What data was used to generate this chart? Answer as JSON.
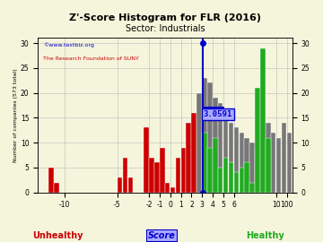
{
  "title": "Z'-Score Histogram for FLR (2016)",
  "subtitle": "Sector: Industrials",
  "xlabel_main": "Score",
  "xlabel_unhealthy": "Unhealthy",
  "xlabel_healthy": "Healthy",
  "ylabel": "Number of companies (573 total)",
  "watermark1": "©www.textbiz.org",
  "watermark2": "The Research Foundation of SUNY",
  "flr_score": 3.0591,
  "flr_label": "3.0591",
  "red_bins": [
    [
      -11.5,
      5
    ],
    [
      -11.0,
      2
    ],
    [
      -5.0,
      3
    ],
    [
      -4.5,
      7
    ],
    [
      -4.0,
      3
    ],
    [
      -2.5,
      13
    ],
    [
      -2.0,
      7
    ],
    [
      -1.5,
      6
    ],
    [
      -1.0,
      9
    ],
    [
      -0.5,
      2
    ],
    [
      0.0,
      1
    ],
    [
      0.5,
      7
    ],
    [
      1.0,
      9
    ],
    [
      1.5,
      14
    ],
    [
      2.0,
      16
    ]
  ],
  "gray_bins": [
    [
      2.5,
      20
    ],
    [
      3.0,
      23
    ],
    [
      3.5,
      22
    ],
    [
      4.0,
      19
    ],
    [
      4.5,
      18
    ],
    [
      5.0,
      16
    ],
    [
      5.5,
      14
    ],
    [
      6.0,
      13
    ],
    [
      6.5,
      12
    ],
    [
      7.0,
      11
    ],
    [
      7.5,
      10
    ],
    [
      8.0,
      9
    ],
    [
      8.5,
      13
    ],
    [
      9.0,
      14
    ],
    [
      9.5,
      12
    ],
    [
      10.0,
      11
    ],
    [
      10.5,
      14
    ],
    [
      11.0,
      12
    ]
  ],
  "green_bins": [
    [
      3.0,
      12
    ],
    [
      3.5,
      9
    ],
    [
      4.0,
      11
    ],
    [
      4.5,
      5
    ],
    [
      5.0,
      7
    ],
    [
      5.5,
      6
    ],
    [
      6.0,
      4
    ],
    [
      6.5,
      5
    ],
    [
      7.0,
      6
    ],
    [
      7.5,
      2
    ],
    [
      8.0,
      21
    ],
    [
      8.5,
      29
    ],
    [
      9.0,
      11
    ]
  ],
  "xlim": [
    -12.5,
    11.5
  ],
  "ylim": [
    0,
    30
  ],
  "xticks": [
    -10,
    -5,
    -2,
    -1,
    0,
    1,
    2,
    3,
    4,
    5,
    6,
    10,
    11
  ],
  "xticklabels": [
    "-10",
    "-5",
    "-2",
    "-1",
    "0",
    "1",
    "2",
    "3",
    "4",
    "5",
    "6",
    "10",
    "100"
  ],
  "yticks": [
    0,
    5,
    10,
    15,
    20,
    25,
    30
  ],
  "bar_width": 0.47,
  "background_color": "#f5f5dc",
  "grid_color": "#bbbbbb",
  "red_color": "#cc0000",
  "gray_color": "#777777",
  "green_color": "#22aa22",
  "blue_color": "#0000cc"
}
